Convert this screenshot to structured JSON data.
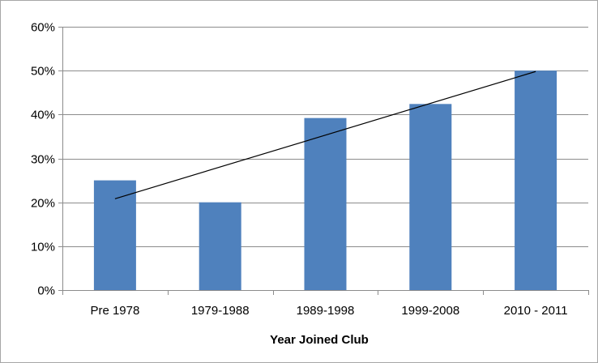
{
  "chart_data": {
    "type": "bar",
    "title": "",
    "xlabel": "Year Joined Club",
    "ylabel": "",
    "categories": [
      "Pre 1978",
      "1979-1988",
      "1989-1998",
      "1999-2008",
      "2010 - 2011"
    ],
    "values": [
      25,
      20,
      39.2,
      42.4,
      50
    ],
    "ylim": [
      0,
      60
    ],
    "yticks": [
      0,
      10,
      20,
      30,
      40,
      50,
      60
    ],
    "ytick_labels": [
      "0%",
      "10%",
      "20%",
      "30%",
      "40%",
      "50%",
      "60%"
    ],
    "grid": true,
    "legend": "none",
    "trendline": {
      "type": "linear",
      "start": 20.8,
      "end": 49.8
    },
    "colors": {
      "bar": "#4f81bd",
      "trendline": "#000000",
      "grid": "#8c8c8c",
      "axis": "#8c8c8c",
      "frame": "#a6a6a6"
    }
  }
}
